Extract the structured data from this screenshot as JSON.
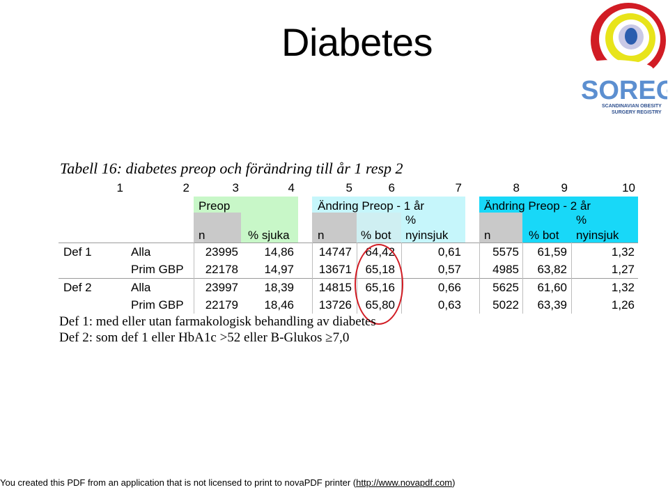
{
  "slide": {
    "title": "Diabetes",
    "logo_text": "SOREG",
    "logo_subtitle_1": "SCANDINAVIAN OBESITY",
    "logo_subtitle_2": "SURGERY REGISTRY"
  },
  "table": {
    "caption": "Tabell 16: diabetes preop och förändring till år 1 resp 2",
    "column_numbers": [
      "1",
      "2",
      "3",
      "4",
      "5",
      "6",
      "7",
      "8",
      "9",
      "10"
    ],
    "groups": [
      {
        "label": "Preop",
        "color": "#c8f7c8"
      },
      {
        "label": "Ändring Preop - 1 år",
        "color": "#c6f6fb"
      },
      {
        "label": "Ändring Preop - 2 år",
        "color": "#18d8f8"
      }
    ],
    "subheaders": {
      "preop_n": "n",
      "preop_sjuka": "% sjuka",
      "y1_n": "n",
      "y1_bot": "% bot",
      "y1_nyinsjuk_a": "%",
      "y1_nyinsjuk_b": "nyinsjuk",
      "y2_n": "n",
      "y2_bot": "% bot",
      "y2_nyinsjuk_a": "%",
      "y2_nyinsjuk_b": "nyinsjuk"
    },
    "rows": [
      {
        "def": "Def 1",
        "group": "Alla",
        "c3": "23995",
        "c4": "14,86",
        "c5": "14747",
        "c6": "64,42",
        "c7": "0,61",
        "c8": "5575",
        "c9": "61,59",
        "c10": "1,32"
      },
      {
        "def": "",
        "group": "Prim GBP",
        "c3": "22178",
        "c4": "14,97",
        "c5": "13671",
        "c6": "65,18",
        "c7": "0,57",
        "c8": "4985",
        "c9": "63,82",
        "c10": "1,27"
      },
      {
        "def": "Def 2",
        "group": "Alla",
        "c3": "23997",
        "c4": "18,39",
        "c5": "14815",
        "c6": "65,16",
        "c7": "0,66",
        "c8": "5625",
        "c9": "61,60",
        "c10": "1,32"
      },
      {
        "def": "",
        "group": "Prim GBP",
        "c3": "22179",
        "c4": "18,46",
        "c5": "13726",
        "c6": "65,80",
        "c7": "0,63",
        "c8": "5022",
        "c9": "63,39",
        "c10": "1,26"
      }
    ],
    "definitions": [
      "Def 1: med eller utan farmakologisk behandling av diabetes",
      "Def 2: som def 1 eller HbA1c >52 eller B-Glukos ≥7,0"
    ]
  },
  "footer": {
    "text": "You created this PDF from an application that is not licensed to print to novaPDF printer (",
    "link": "http://www.novapdf.com",
    "close": ")"
  }
}
